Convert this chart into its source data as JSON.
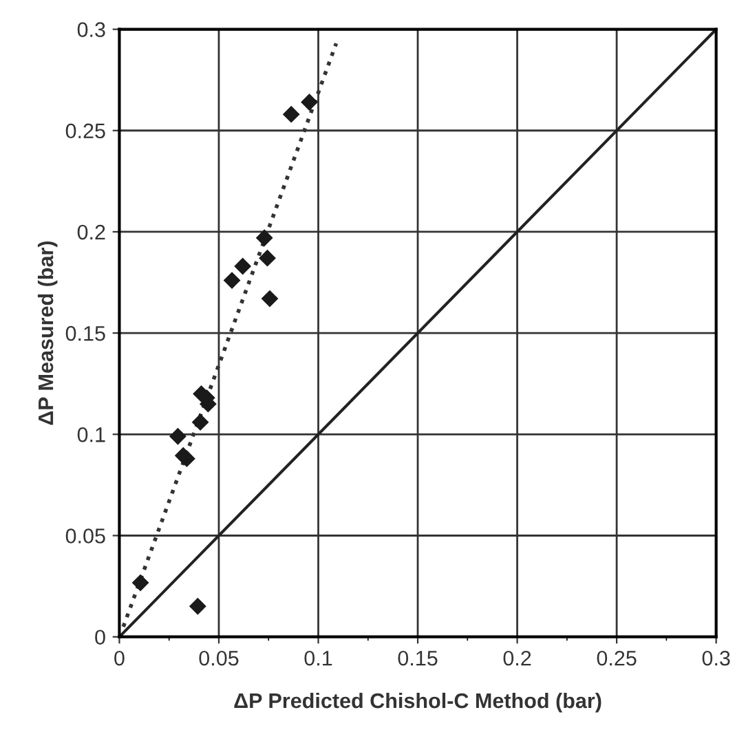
{
  "chart_data": {
    "type": "scatter",
    "xlabel": "ΔP Predicted Chishol-C Method (bar)",
    "ylabel": "ΔP Measured (bar)",
    "xlim": [
      0,
      0.3
    ],
    "ylim": [
      0,
      0.3
    ],
    "xticks": [
      0,
      {
        "value": 0.025,
        "label": null
      },
      0.05,
      {
        "value": 0.075,
        "label": null
      },
      0.1,
      {
        "value": 0.125,
        "label": null
      },
      0.15,
      {
        "value": 0.175,
        "label": null
      },
      0.2,
      {
        "value": 0.225,
        "label": null
      },
      0.25,
      {
        "value": 0.275,
        "label": null
      },
      0.3
    ],
    "yticks": [
      0,
      0.05,
      0.1,
      0.15,
      0.2,
      0.25,
      0.3
    ],
    "grid": true,
    "legend": false,
    "series": [
      {
        "color": "#1a1a1a",
        "marker": "diamond",
        "x": [
          0.0955,
          0.0864,
          0.0729,
          0.0744,
          0.062,
          0.0566,
          0.0756,
          0.0412,
          0.0439,
          0.0446,
          0.0407,
          0.0294,
          0.0321,
          0.0339,
          0.0106,
          0.0394
        ],
        "values": [
          0.264,
          0.258,
          0.197,
          0.187,
          0.183,
          0.176,
          0.167,
          0.12,
          0.118,
          0.115,
          0.106,
          0.099,
          0.0895,
          0.088,
          0.0267,
          0.0151
        ]
      },
      {
        "type": "line",
        "color": "#333333",
        "line_style": "dotted",
        "marker": "none",
        "x": [
          0.002,
          0.109
        ],
        "values": [
          0.005,
          0.293
        ]
      },
      {
        "type": "line",
        "color": "#222222",
        "line_style": "solid",
        "marker": "none",
        "x": [
          0,
          0.3
        ],
        "values": [
          0,
          0.3
        ]
      }
    ]
  }
}
